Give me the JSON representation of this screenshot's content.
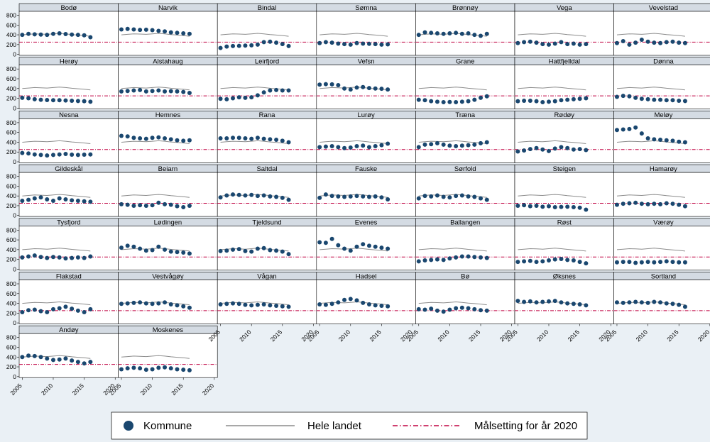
{
  "chart_data": {
    "type": "scatter",
    "layout": "small-multiples",
    "x_ticks": [
      2005,
      2010,
      2015,
      2020
    ],
    "y_ticks": [
      0,
      200,
      400,
      600,
      800
    ],
    "xlim": [
      2004.5,
      2020.5
    ],
    "ylim": [
      -20,
      880
    ],
    "legend": {
      "position": "bottom",
      "entries": [
        "Kommune",
        "Hele landet",
        "Målsetting for år 2020"
      ]
    },
    "colors": {
      "kommune": "#1a476f",
      "hele_landet": "#8c8c8c",
      "malsetting": "#c00040",
      "panel_header": "#d4dbe3",
      "background": "#ffffff",
      "outer": "#eaf0f5"
    },
    "target_value": 250,
    "years": [
      2005,
      2006,
      2007,
      2008,
      2009,
      2010,
      2011,
      2012,
      2013,
      2014,
      2015,
      2016
    ],
    "hele_landet": [
      400,
      410,
      420,
      415,
      410,
      420,
      430,
      420,
      405,
      395,
      385,
      370
    ],
    "panels": [
      {
        "name": "Bodø",
        "values": [
          400,
          420,
          410,
          405,
          400,
          420,
          430,
          415,
          405,
          400,
          390,
          350
        ]
      },
      {
        "name": "Narvik",
        "values": [
          510,
          520,
          510,
          500,
          505,
          495,
          480,
          470,
          450,
          440,
          430,
          420
        ]
      },
      {
        "name": "Bindal",
        "values": [
          130,
          160,
          170,
          175,
          180,
          185,
          200,
          250,
          260,
          240,
          210,
          170
        ]
      },
      {
        "name": "Sømna",
        "values": [
          230,
          250,
          240,
          220,
          210,
          200,
          230,
          220,
          215,
          210,
          200,
          205
        ]
      },
      {
        "name": "Brønnøy",
        "values": [
          400,
          450,
          440,
          430,
          420,
          430,
          440,
          420,
          430,
          400,
          380,
          420
        ]
      },
      {
        "name": "Vega",
        "values": [
          230,
          250,
          260,
          240,
          210,
          200,
          220,
          250,
          210,
          220,
          200,
          210
        ]
      },
      {
        "name": "Vevelstad",
        "values": [
          230,
          270,
          200,
          240,
          300,
          260,
          240,
          230,
          250,
          260,
          240,
          230
        ]
      },
      {
        "name": "Herøy",
        "values": [
          210,
          200,
          180,
          170,
          165,
          160,
          160,
          155,
          150,
          145,
          140,
          130
        ]
      },
      {
        "name": "Alstahaug",
        "values": [
          340,
          350,
          360,
          370,
          340,
          350,
          360,
          340,
          345,
          340,
          330,
          310
        ]
      },
      {
        "name": "Leirfjord",
        "values": [
          190,
          180,
          200,
          220,
          210,
          220,
          260,
          320,
          360,
          370,
          360,
          360
        ]
      },
      {
        "name": "Vefsn",
        "values": [
          480,
          490,
          485,
          470,
          400,
          380,
          420,
          430,
          410,
          400,
          395,
          380
        ]
      },
      {
        "name": "Grane",
        "values": [
          170,
          160,
          140,
          130,
          120,
          125,
          120,
          130,
          140,
          170,
          210,
          240
        ]
      },
      {
        "name": "Hattfjelldal",
        "values": [
          140,
          150,
          150,
          140,
          120,
          130,
          140,
          160,
          170,
          180,
          190,
          200
        ]
      },
      {
        "name": "Dønna",
        "values": [
          230,
          250,
          240,
          210,
          190,
          180,
          170,
          170,
          160,
          160,
          150,
          145
        ]
      },
      {
        "name": "Nesna",
        "values": [
          180,
          170,
          150,
          140,
          130,
          140,
          150,
          160,
          145,
          140,
          145,
          150
        ]
      },
      {
        "name": "Hemnes",
        "values": [
          530,
          520,
          490,
          480,
          470,
          490,
          500,
          480,
          460,
          440,
          430,
          440
        ]
      },
      {
        "name": "Rana",
        "values": [
          480,
          480,
          490,
          490,
          480,
          470,
          490,
          470,
          460,
          450,
          430,
          400
        ]
      },
      {
        "name": "Lurøy",
        "values": [
          300,
          310,
          320,
          300,
          280,
          290,
          320,
          330,
          300,
          320,
          340,
          370
        ]
      },
      {
        "name": "Træna",
        "values": [
          300,
          350,
          360,
          380,
          350,
          330,
          320,
          330,
          340,
          350,
          380,
          400
        ]
      },
      {
        "name": "Rødøy",
        "values": [
          210,
          230,
          260,
          280,
          250,
          220,
          270,
          300,
          280,
          250,
          260,
          240
        ]
      },
      {
        "name": "Meløy",
        "values": [
          650,
          660,
          670,
          700,
          580,
          480,
          460,
          450,
          440,
          430,
          410,
          400
        ]
      },
      {
        "name": "Gildeskål",
        "values": [
          300,
          320,
          350,
          370,
          330,
          300,
          350,
          330,
          310,
          300,
          290,
          280
        ]
      },
      {
        "name": "Beiarn",
        "values": [
          230,
          220,
          200,
          210,
          200,
          210,
          260,
          230,
          220,
          190,
          170,
          200
        ]
      },
      {
        "name": "Saltdal",
        "values": [
          370,
          410,
          430,
          420,
          410,
          420,
          400,
          410,
          390,
          380,
          360,
          320
        ]
      },
      {
        "name": "Fauske",
        "values": [
          360,
          430,
          400,
          390,
          380,
          390,
          400,
          390,
          380,
          390,
          370,
          330
        ]
      },
      {
        "name": "Sørfold",
        "values": [
          350,
          400,
          390,
          410,
          380,
          370,
          400,
          410,
          390,
          380,
          350,
          320
        ]
      },
      {
        "name": "Steigen",
        "values": [
          200,
          210,
          190,
          200,
          180,
          190,
          170,
          175,
          180,
          170,
          160,
          120
        ]
      },
      {
        "name": "Hamarøy",
        "values": [
          220,
          240,
          250,
          260,
          240,
          230,
          240,
          230,
          250,
          240,
          220,
          190
        ]
      },
      {
        "name": "Tysfjord",
        "values": [
          240,
          260,
          280,
          250,
          230,
          250,
          240,
          220,
          230,
          240,
          230,
          260
        ]
      },
      {
        "name": "Lødingen",
        "values": [
          440,
          480,
          460,
          420,
          380,
          390,
          460,
          400,
          360,
          350,
          340,
          320
        ]
      },
      {
        "name": "Tjeldsund",
        "values": [
          370,
          380,
          400,
          410,
          370,
          360,
          420,
          430,
          390,
          380,
          360,
          310
        ]
      },
      {
        "name": "Evenes",
        "values": [
          550,
          540,
          620,
          490,
          420,
          380,
          460,
          510,
          480,
          460,
          440,
          420
        ]
      },
      {
        "name": "Ballangen",
        "values": [
          160,
          180,
          190,
          200,
          190,
          220,
          240,
          260,
          260,
          250,
          240,
          230
        ]
      },
      {
        "name": "Røst",
        "values": [
          150,
          160,
          170,
          150,
          160,
          180,
          200,
          210,
          190,
          180,
          150,
          120
        ]
      },
      {
        "name": "Værøy",
        "values": [
          140,
          150,
          150,
          130,
          140,
          150,
          140,
          150,
          160,
          150,
          140,
          140
        ]
      },
      {
        "name": "Flakstad",
        "values": [
          220,
          260,
          270,
          240,
          220,
          280,
          300,
          330,
          290,
          250,
          220,
          280
        ]
      },
      {
        "name": "Vestvågøy",
        "values": [
          390,
          400,
          410,
          420,
          400,
          390,
          400,
          420,
          380,
          360,
          340,
          310
        ]
      },
      {
        "name": "Vågan",
        "values": [
          380,
          390,
          400,
          390,
          370,
          360,
          370,
          380,
          360,
          350,
          340,
          330
        ]
      },
      {
        "name": "Hadsel",
        "values": [
          380,
          370,
          390,
          420,
          470,
          490,
          460,
          410,
          380,
          360,
          350,
          340
        ]
      },
      {
        "name": "Bø",
        "values": [
          280,
          270,
          290,
          250,
          230,
          270,
          300,
          310,
          300,
          280,
          260,
          250
        ]
      },
      {
        "name": "Øksnes",
        "values": [
          450,
          430,
          440,
          420,
          430,
          440,
          450,
          420,
          400,
          390,
          380,
          360
        ]
      },
      {
        "name": "Sortland",
        "values": [
          420,
          410,
          420,
          430,
          420,
          410,
          430,
          420,
          400,
          390,
          370,
          330
        ]
      },
      {
        "name": "Andøy",
        "values": [
          400,
          430,
          420,
          400,
          370,
          340,
          350,
          370,
          330,
          300,
          270,
          300
        ]
      },
      {
        "name": "Moskenes",
        "values": [
          150,
          170,
          180,
          170,
          140,
          150,
          180,
          190,
          170,
          150,
          140,
          130
        ]
      }
    ]
  }
}
